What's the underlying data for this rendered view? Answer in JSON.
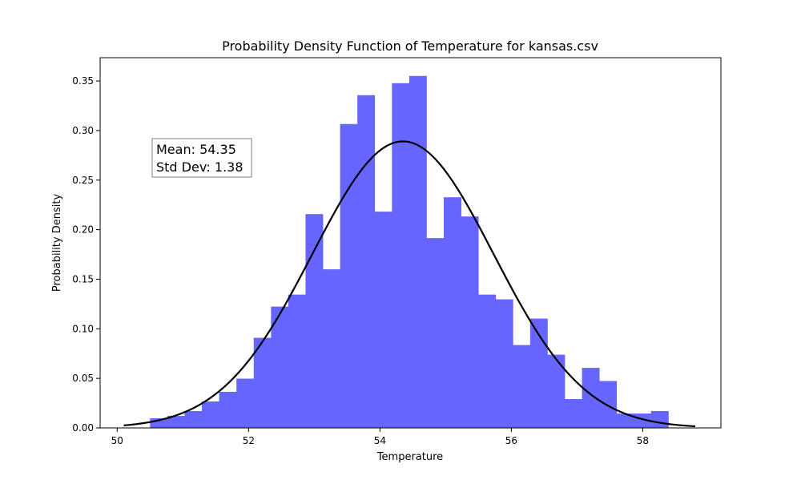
{
  "chart_data": {
    "type": "bar",
    "title": "Probability Density Function of Temperature for kansas.csv",
    "xlabel": "Temperature",
    "ylabel": "Probability Density",
    "xlim": [
      49.74,
      59.19
    ],
    "ylim": [
      0,
      0.3735
    ],
    "x_ticks": [
      50,
      52,
      54,
      56,
      58
    ],
    "y_ticks": [
      0.0,
      0.05,
      0.1,
      0.15,
      0.2,
      0.25,
      0.3,
      0.35
    ],
    "x_tick_labels": [
      "50",
      "52",
      "54",
      "56",
      "58"
    ],
    "y_tick_labels": [
      "0.00",
      "0.05",
      "0.10",
      "0.15",
      "0.20",
      "0.25",
      "0.30",
      "0.35"
    ],
    "bin_edges": [
      50.5,
      50.763,
      51.026,
      51.289,
      51.552,
      51.815,
      52.078,
      52.341,
      52.604,
      52.867,
      53.13,
      53.393,
      53.656,
      53.919,
      54.182,
      54.445,
      54.708,
      54.971,
      55.234,
      55.497,
      55.76,
      56.023,
      56.286,
      56.549,
      56.812,
      57.075,
      57.338,
      57.601,
      57.864,
      58.127,
      58.39
    ],
    "values": [
      0.0097,
      0.0121,
      0.017,
      0.0267,
      0.0364,
      0.0497,
      0.0909,
      0.1224,
      0.1345,
      0.2157,
      0.16,
      0.3066,
      0.3357,
      0.2182,
      0.3478,
      0.3551,
      0.1915,
      0.2327,
      0.2133,
      0.1345,
      0.1297,
      0.0836,
      0.1103,
      0.0739,
      0.0291,
      0.0606,
      0.0473,
      0.0145,
      0.0145,
      0.017
    ],
    "bar_color": "#6666ff",
    "curve": {
      "type": "normal_pdf",
      "mean": 54.35,
      "std": 1.38,
      "x_range": [
        50.1,
        58.8
      ],
      "color": "#000000"
    },
    "annotation": {
      "mean_text": "Mean: 54.35",
      "std_text": "Std Dev: 1.38"
    },
    "grid": false
  }
}
